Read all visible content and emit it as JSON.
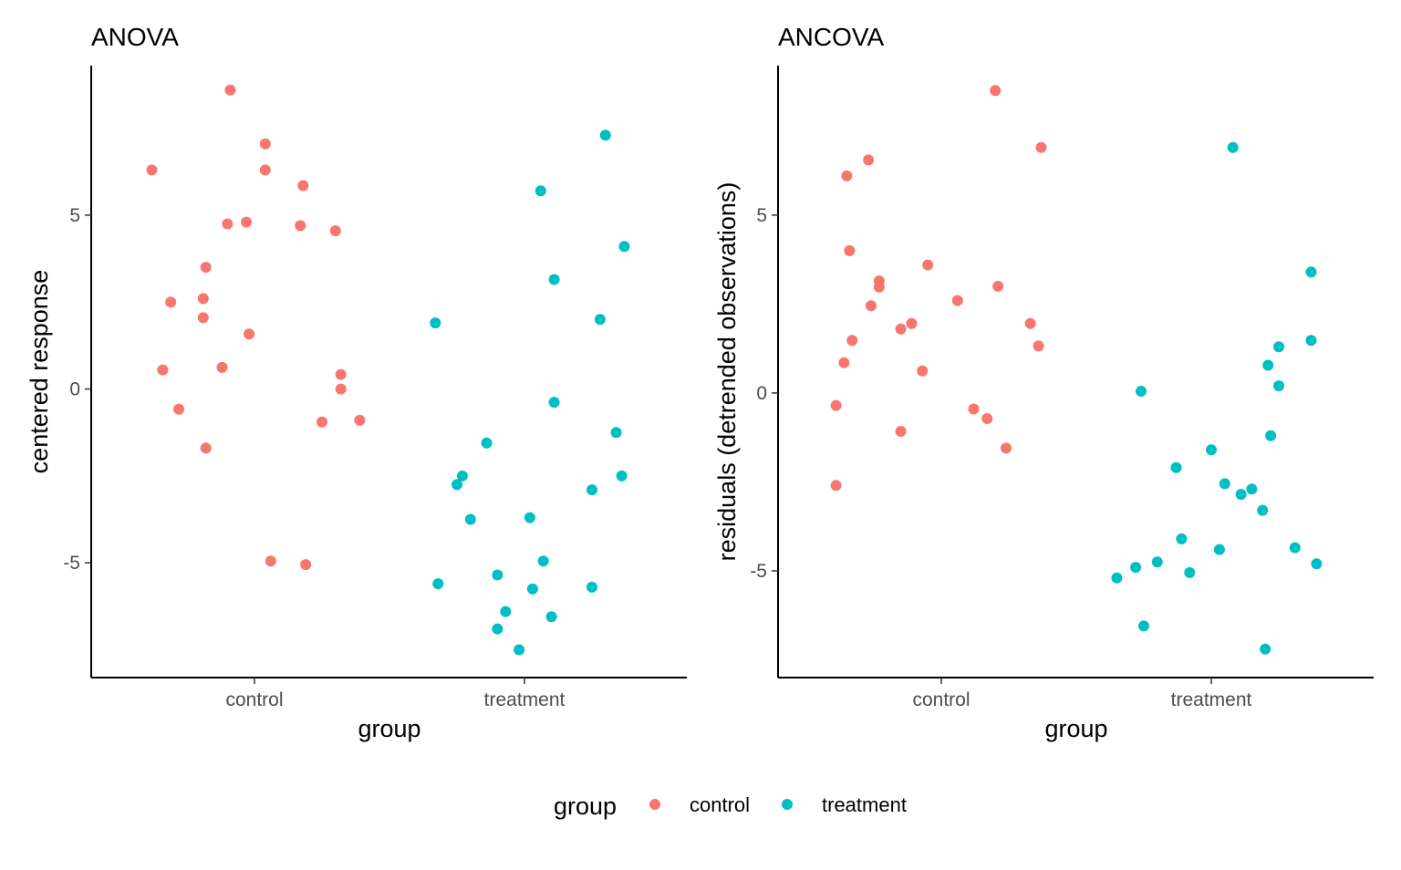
{
  "colors": {
    "control": "#F8766D",
    "treatment": "#00BFC4",
    "axis": "#000000",
    "tick_text": "#4d4d4d"
  },
  "legend": {
    "title": "group",
    "entries": [
      {
        "label": "control",
        "color": "#F8766D"
      },
      {
        "label": "treatment",
        "color": "#00BFC4"
      }
    ],
    "placement": "bottom"
  },
  "chart_data": [
    {
      "type": "scatter",
      "title": "ANOVA",
      "xlabel": "group",
      "ylabel": "centered response",
      "categories": [
        "control",
        "treatment"
      ],
      "ylim": [
        -8.3,
        9.3
      ],
      "yticks": [
        -5,
        0,
        5
      ],
      "ytick_labels": [
        "-5",
        "0",
        "5"
      ],
      "grid": false,
      "series": [
        {
          "name": "control",
          "color": "#F8766D",
          "points": [
            [
              -0.38,
              6.3
            ],
            [
              -0.34,
              0.55
            ],
            [
              -0.31,
              2.5
            ],
            [
              -0.28,
              -0.58
            ],
            [
              -0.18,
              3.5
            ],
            [
              -0.19,
              2.6
            ],
            [
              -0.19,
              2.05
            ],
            [
              -0.18,
              -1.7
            ],
            [
              -0.12,
              0.62
            ],
            [
              -0.1,
              4.75
            ],
            [
              -0.09,
              8.6
            ],
            [
              -0.03,
              4.8
            ],
            [
              -0.02,
              1.58
            ],
            [
              0.04,
              6.3
            ],
            [
              0.04,
              7.05
            ],
            [
              0.06,
              -4.95
            ],
            [
              0.17,
              4.7
            ],
            [
              0.18,
              5.85
            ],
            [
              0.19,
              -5.05
            ],
            [
              0.25,
              -0.95
            ],
            [
              0.3,
              4.55
            ],
            [
              0.32,
              0.42
            ],
            [
              0.32,
              0.0
            ],
            [
              0.39,
              -0.9
            ]
          ]
        },
        {
          "name": "treatment",
          "color": "#00BFC4",
          "points": [
            [
              -0.33,
              1.9
            ],
            [
              -0.32,
              -5.6
            ],
            [
              -0.25,
              -2.75
            ],
            [
              -0.23,
              -2.5
            ],
            [
              -0.2,
              -3.75
            ],
            [
              -0.14,
              -1.55
            ],
            [
              -0.1,
              -6.9
            ],
            [
              -0.1,
              -5.35
            ],
            [
              -0.07,
              -6.4
            ],
            [
              -0.02,
              -7.5
            ],
            [
              0.02,
              -3.7
            ],
            [
              0.03,
              -5.75
            ],
            [
              0.06,
              5.7
            ],
            [
              0.07,
              -4.95
            ],
            [
              0.1,
              -6.55
            ],
            [
              0.11,
              3.15
            ],
            [
              0.11,
              -0.38
            ],
            [
              0.25,
              -5.7
            ],
            [
              0.25,
              -2.9
            ],
            [
              0.28,
              2.0
            ],
            [
              0.3,
              7.3
            ],
            [
              0.34,
              -1.25
            ],
            [
              0.36,
              -2.5
            ],
            [
              0.37,
              4.1
            ]
          ]
        }
      ]
    },
    {
      "type": "scatter",
      "title": "ANCOVA",
      "xlabel": "group",
      "ylabel": "residuals (detrended observations)",
      "categories": [
        "control",
        "treatment"
      ],
      "ylim": [
        -8.0,
        9.2
      ],
      "yticks": [
        -5,
        0,
        5
      ],
      "ytick_labels": [
        "-5",
        "0",
        "5"
      ],
      "grid": false,
      "series": [
        {
          "name": "control",
          "color": "#F8766D",
          "points": [
            [
              -0.39,
              -0.35
            ],
            [
              -0.39,
              -2.6
            ],
            [
              -0.36,
              0.85
            ],
            [
              -0.35,
              6.1
            ],
            [
              -0.34,
              4.0
            ],
            [
              -0.33,
              1.48
            ],
            [
              -0.27,
              6.55
            ],
            [
              -0.26,
              2.45
            ],
            [
              -0.23,
              3.15
            ],
            [
              -0.23,
              2.98
            ],
            [
              -0.15,
              1.8
            ],
            [
              -0.15,
              -1.08
            ],
            [
              -0.11,
              1.95
            ],
            [
              -0.07,
              0.62
            ],
            [
              -0.05,
              3.6
            ],
            [
              0.06,
              2.6
            ],
            [
              0.12,
              -0.45
            ],
            [
              0.17,
              -0.72
            ],
            [
              0.2,
              8.5
            ],
            [
              0.21,
              3.0
            ],
            [
              0.24,
              -1.55
            ],
            [
              0.33,
              1.95
            ],
            [
              0.36,
              1.32
            ],
            [
              0.37,
              6.9
            ]
          ]
        },
        {
          "name": "treatment",
          "color": "#00BFC4",
          "points": [
            [
              -0.35,
              -5.2
            ],
            [
              -0.28,
              -4.9
            ],
            [
              -0.26,
              0.05
            ],
            [
              -0.25,
              -6.55
            ],
            [
              -0.2,
              -4.75
            ],
            [
              -0.13,
              -2.1
            ],
            [
              -0.11,
              -4.1
            ],
            [
              -0.08,
              -5.05
            ],
            [
              0.0,
              -1.6
            ],
            [
              0.03,
              -4.4
            ],
            [
              0.05,
              -2.55
            ],
            [
              0.08,
              6.9
            ],
            [
              0.11,
              -2.85
            ],
            [
              0.15,
              -2.7
            ],
            [
              0.19,
              -3.3
            ],
            [
              0.2,
              -7.2
            ],
            [
              0.21,
              0.78
            ],
            [
              0.22,
              -1.2
            ],
            [
              0.25,
              1.3
            ],
            [
              0.25,
              0.2
            ],
            [
              0.31,
              -4.35
            ],
            [
              0.37,
              3.4
            ],
            [
              0.37,
              1.48
            ],
            [
              0.39,
              -4.8
            ]
          ]
        }
      ]
    }
  ]
}
